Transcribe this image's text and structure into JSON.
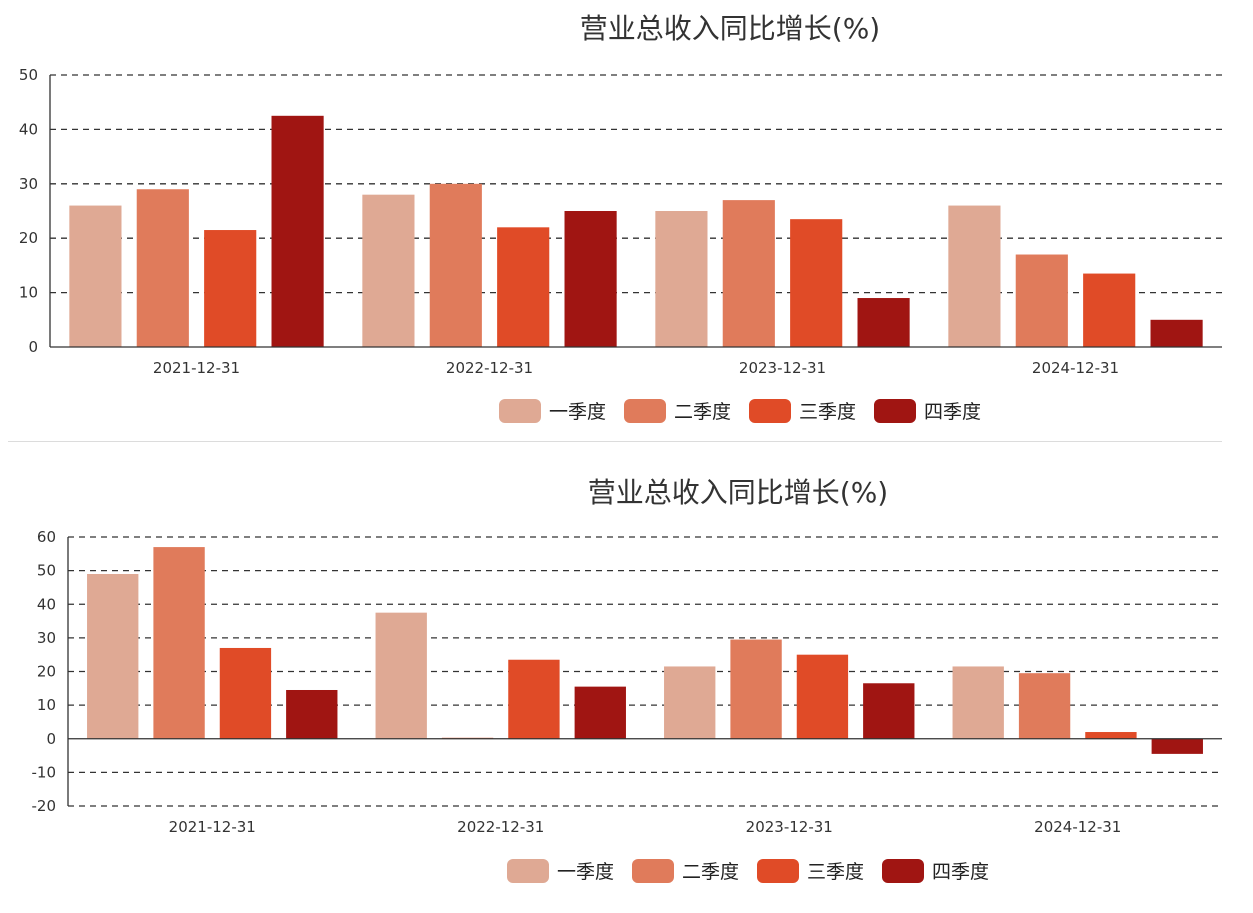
{
  "chart_data": [
    {
      "type": "bar",
      "title": "营业总收入同比增长(%)",
      "categories": [
        "2021-12-31",
        "2022-12-31",
        "2023-12-31",
        "2024-12-31"
      ],
      "series": [
        {
          "name": "一季度",
          "color": "#dfa994",
          "values": [
            26,
            28,
            25,
            26
          ]
        },
        {
          "name": "二季度",
          "color": "#e07b5b",
          "values": [
            29,
            30,
            27,
            17
          ]
        },
        {
          "name": "三季度",
          "color": "#e04b27",
          "values": [
            21.5,
            22,
            23.5,
            13.5
          ]
        },
        {
          "name": "四季度",
          "color": "#a01512",
          "values": [
            42.5,
            25,
            9,
            5
          ]
        }
      ],
      "ylim": [
        0,
        50
      ],
      "yticks": [
        0,
        10,
        20,
        30,
        40,
        50
      ],
      "grid": true,
      "legend": "bottom-center"
    },
    {
      "type": "bar",
      "title": "营业总收入同比增长(%)",
      "categories": [
        "2021-12-31",
        "2022-12-31",
        "2023-12-31",
        "2024-12-31"
      ],
      "series": [
        {
          "name": "一季度",
          "color": "#dfa994",
          "values": [
            49,
            37.5,
            21.5,
            21.5
          ]
        },
        {
          "name": "二季度",
          "color": "#e07b5b",
          "values": [
            57,
            0.3,
            29.5,
            19.5
          ]
        },
        {
          "name": "三季度",
          "color": "#e04b27",
          "values": [
            27,
            23.5,
            25,
            2
          ]
        },
        {
          "name": "四季度",
          "color": "#a01512",
          "values": [
            14.5,
            15.5,
            16.5,
            -4.5
          ]
        }
      ],
      "ylim": [
        -20,
        60
      ],
      "yticks": [
        -20,
        -10,
        0,
        10,
        20,
        30,
        40,
        50,
        60
      ],
      "grid": true,
      "legend": "bottom-center"
    }
  ]
}
